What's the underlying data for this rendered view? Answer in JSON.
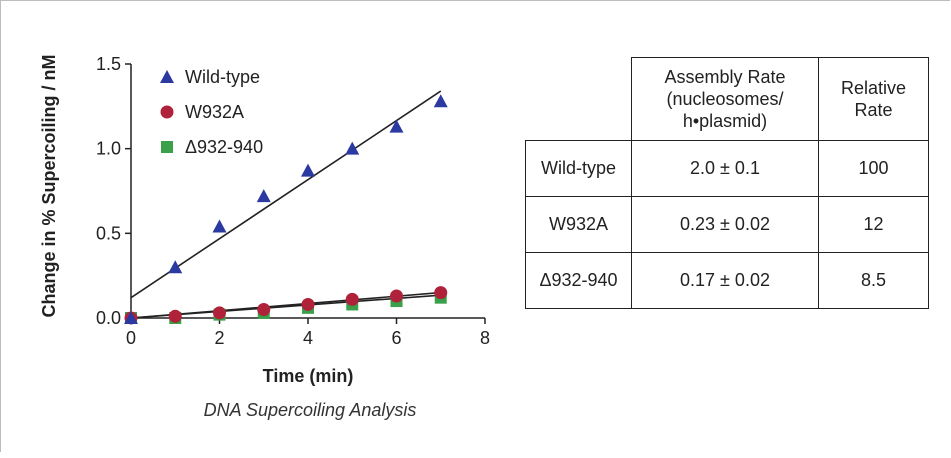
{
  "chart_data": {
    "type": "scatter",
    "caption": "DNA Supercoiling Analysis",
    "xlabel": "Time (min)",
    "ylabel": "Change in % Supercoiling / nM",
    "xlim": [
      0,
      8
    ],
    "ylim": [
      0,
      1.5
    ],
    "x_ticks": [
      0,
      2,
      4,
      6,
      8
    ],
    "y_ticks": [
      0.0,
      0.5,
      1.0,
      1.5
    ],
    "x_tick_labels": [
      "0",
      "2",
      "4",
      "6",
      "8"
    ],
    "y_tick_labels": [
      "0.0",
      "0.5",
      "1.0",
      "1.5"
    ],
    "legend_position": "top-left",
    "series": [
      {
        "name": "Wild-type",
        "marker": "triangle",
        "color": "#2b3aa0",
        "x": [
          0,
          1,
          2,
          3,
          4,
          5,
          6,
          7
        ],
        "y": [
          0.0,
          0.3,
          0.54,
          0.72,
          0.87,
          1.0,
          1.13,
          1.28
        ],
        "fit": {
          "x": [
            0,
            7
          ],
          "y": [
            0.12,
            1.34
          ]
        }
      },
      {
        "name": "W932A",
        "marker": "circle",
        "color": "#b0213a",
        "x": [
          0,
          1,
          2,
          3,
          4,
          5,
          6,
          7
        ],
        "y": [
          0.0,
          0.01,
          0.03,
          0.05,
          0.08,
          0.11,
          0.13,
          0.15
        ],
        "fit": {
          "x": [
            0,
            7
          ],
          "y": [
            0.0,
            0.15
          ]
        }
      },
      {
        "name": "Δ932-940",
        "marker": "square",
        "color": "#3aa04a",
        "x": [
          0,
          1,
          2,
          3,
          4,
          5,
          6,
          7
        ],
        "y": [
          0.0,
          0.0,
          0.02,
          0.03,
          0.06,
          0.08,
          0.1,
          0.12
        ],
        "fit": {
          "x": [
            0,
            7
          ],
          "y": [
            0.0,
            0.135
          ]
        }
      }
    ]
  },
  "table": {
    "headers": [
      "",
      "Assembly Rate\n(nucleosomes/\nh•plasmid)",
      "Relative\nRate"
    ],
    "rows": [
      [
        "Wild-type",
        "2.0 ± 0.1",
        "100"
      ],
      [
        "W932A",
        "0.23 ± 0.02",
        "12"
      ],
      [
        "Δ932-940",
        "0.17 ± 0.02",
        "8.5"
      ]
    ]
  }
}
